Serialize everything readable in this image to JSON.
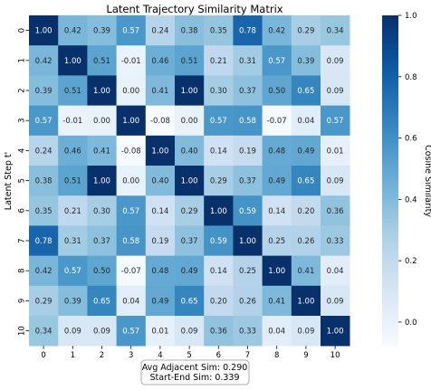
{
  "chart_data": {
    "type": "heatmap",
    "title": "Latent Trajectory Similarity Matrix",
    "xlabel": "",
    "ylabel": "Latent Step t'",
    "x_ticks": [
      "0",
      "1",
      "2",
      "3",
      "4",
      "5",
      "6",
      "7",
      "8",
      "9",
      "10"
    ],
    "y_ticks": [
      "0",
      "1",
      "2",
      "3",
      "4",
      "5",
      "6",
      "7",
      "8",
      "9",
      "10"
    ],
    "values": [
      [
        1.0,
        0.42,
        0.39,
        0.57,
        0.24,
        0.38,
        0.35,
        0.78,
        0.42,
        0.29,
        0.34
      ],
      [
        0.42,
        1.0,
        0.51,
        -0.01,
        0.46,
        0.51,
        0.21,
        0.31,
        0.57,
        0.39,
        0.09
      ],
      [
        0.39,
        0.51,
        1.0,
        -0.0,
        0.41,
        1.0,
        0.3,
        0.37,
        0.5,
        0.65,
        0.09
      ],
      [
        0.57,
        -0.01,
        -0.0,
        1.0,
        -0.08,
        -0.0,
        0.57,
        0.58,
        -0.07,
        0.04,
        0.57
      ],
      [
        0.24,
        0.46,
        0.41,
        -0.08,
        1.0,
        0.4,
        0.14,
        0.19,
        0.48,
        0.49,
        0.01
      ],
      [
        0.38,
        0.51,
        1.0,
        -0.0,
        0.4,
        1.0,
        0.29,
        0.37,
        0.49,
        0.65,
        0.09
      ],
      [
        0.35,
        0.21,
        0.3,
        0.57,
        0.14,
        0.29,
        1.0,
        0.59,
        0.14,
        0.2,
        0.36
      ],
      [
        0.78,
        0.31,
        0.37,
        0.58,
        0.19,
        0.37,
        0.59,
        1.0,
        0.25,
        0.26,
        0.33
      ],
      [
        0.42,
        0.57,
        0.5,
        -0.07,
        0.48,
        0.49,
        0.14,
        0.25,
        1.0,
        0.41,
        0.04
      ],
      [
        0.29,
        0.39,
        0.65,
        0.04,
        0.49,
        0.65,
        0.2,
        0.26,
        0.41,
        1.0,
        0.09
      ],
      [
        0.34,
        0.09,
        0.09,
        0.57,
        0.01,
        0.09,
        0.36,
        0.33,
        0.04,
        0.09,
        1.0
      ]
    ],
    "color_range": [
      -0.08,
      1.0
    ],
    "colormap": "Blues",
    "colorbar": {
      "label": "Cosine Similarity",
      "ticks": [
        "0.0",
        "0.2",
        "0.4",
        "0.6",
        "0.8",
        "1.0"
      ],
      "tick_values": [
        0.0,
        0.2,
        0.4,
        0.6,
        0.8,
        1.0
      ]
    },
    "annotation": [
      "Avg Adjacent Sim: 0.290",
      "Start-End Sim: 0.339"
    ]
  }
}
